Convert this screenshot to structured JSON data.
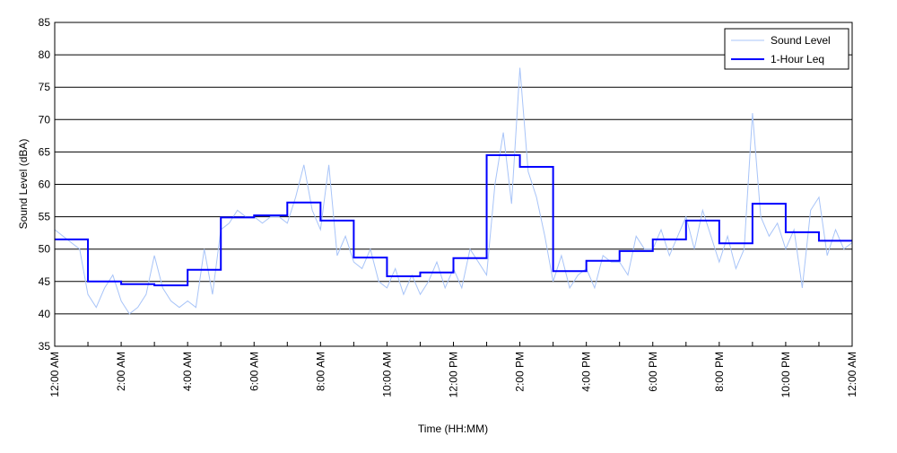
{
  "chart_data": {
    "type": "line",
    "title": "",
    "xlabel": "Time (HH:MM)",
    "ylabel": "Sound Level (dBA)",
    "ylim": [
      35,
      85
    ],
    "yticks": [
      35,
      40,
      45,
      50,
      55,
      60,
      65,
      70,
      75,
      80,
      85
    ],
    "xlim_hours": [
      0,
      24
    ],
    "xtick_labels": [
      "12:00 AM",
      "2:00 AM",
      "4:00 AM",
      "6:00 AM",
      "8:00 AM",
      "10:00 AM",
      "12:00 PM",
      "2:00 PM",
      "4:00 PM",
      "6:00 PM",
      "8:00 PM",
      "10:00 PM",
      "12:00 AM"
    ],
    "grid": "horizontal",
    "legend_position": "top-right",
    "series": [
      {
        "name": "Sound Level",
        "color": "#a8c4f8",
        "step_minutes": 15,
        "values": [
          53,
          52,
          51,
          50,
          43,
          41,
          44,
          46,
          42,
          40,
          41,
          43,
          49,
          44,
          42,
          41,
          42,
          41,
          50,
          43,
          53,
          54,
          56,
          55,
          55,
          54,
          55,
          55,
          54,
          58,
          63,
          56,
          53,
          63,
          49,
          52,
          48,
          47,
          50,
          45,
          44,
          47,
          43,
          46,
          43,
          45,
          48,
          44,
          47,
          44,
          50,
          48,
          46,
          60,
          68,
          57,
          78,
          62,
          58,
          52,
          45,
          49,
          44,
          46,
          47,
          44,
          49,
          48,
          48,
          46,
          52,
          50,
          50,
          53,
          49,
          52,
          55,
          50,
          56,
          52,
          48,
          52,
          47,
          50,
          71,
          55,
          52,
          54,
          50,
          53,
          44,
          56,
          58,
          49,
          53,
          50,
          51
        ]
      },
      {
        "name": "1-Hour Leq",
        "color": "#0000ff",
        "step_minutes": 60,
        "values": [
          51.5,
          45.0,
          44.6,
          44.4,
          46.8,
          54.9,
          55.2,
          57.2,
          54.4,
          48.7,
          45.8,
          46.4,
          48.6,
          64.5,
          62.7,
          46.6,
          48.2,
          49.7,
          51.5,
          54.4,
          50.9,
          57.0,
          52.6,
          51.3
        ]
      }
    ]
  }
}
